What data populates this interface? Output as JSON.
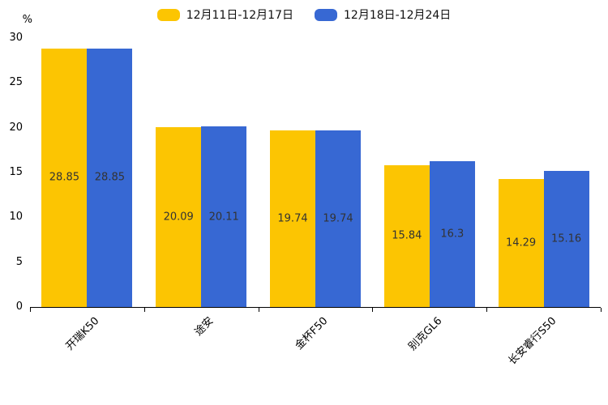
{
  "chart_data": {
    "type": "bar",
    "title": "",
    "xlabel": "",
    "ylabel": "%",
    "unit_label": "%",
    "categories": [
      "开瑞K50",
      "途安",
      "金杯F50",
      "别克GL6",
      "长安睿行S50"
    ],
    "series": [
      {
        "name": "12月11日-12月17日",
        "color": "#FCC502",
        "values": [
          28.85,
          20.09,
          19.74,
          15.84,
          14.29
        ]
      },
      {
        "name": "12月18日-12月24日",
        "color": "#3768D3",
        "values": [
          28.85,
          20.11,
          19.74,
          16.3,
          15.16
        ]
      }
    ],
    "ylim": [
      0,
      30
    ],
    "yticks": [
      0,
      5,
      10,
      15,
      20,
      25,
      30
    ],
    "grid": false,
    "legend_position": "top",
    "value_label_position": "inside-center",
    "value_label_color": "#333333",
    "axis_color": "#000000"
  }
}
